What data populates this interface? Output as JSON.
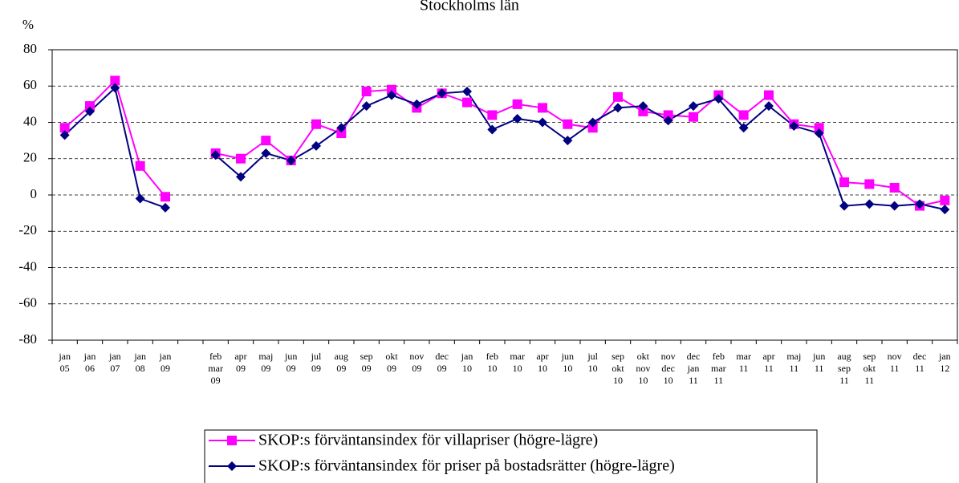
{
  "chart_data": {
    "type": "line",
    "title": "Stockholms län",
    "ylabel": "%",
    "categories": [
      "jan 05",
      "jan 06",
      "jan 07",
      "jan 08",
      "jan 09",
      null,
      "feb mar 09",
      "apr 09",
      "maj 09",
      "jun 09",
      "jul 09",
      "aug 09",
      "sep 09",
      "okt 09",
      "nov 09",
      "dec 09",
      "jan 10",
      "feb 10",
      "mar 10",
      "apr 10",
      "jun 10",
      "jul 10",
      "sep okt 10",
      "okt nov 10",
      "nov dec 10",
      "dec jan 11",
      "feb mar 11",
      "mar 11",
      "apr 11",
      "maj 11",
      "jun 11",
      "aug sep 11",
      "sep okt 11",
      "nov 11",
      "dec 11",
      "jan 12"
    ],
    "series": [
      {
        "name": "SKOP:s förväntansindex för villapriser (högre-lägre)",
        "color": "#ff00ff",
        "marker": "square",
        "values": [
          37,
          49,
          63,
          16,
          -1,
          null,
          23,
          20,
          30,
          19,
          39,
          34,
          57,
          58,
          48,
          56,
          51,
          44,
          50,
          48,
          39,
          37,
          54,
          46,
          44,
          43,
          55,
          44,
          55,
          39,
          37,
          7,
          6,
          4,
          -6,
          -3
        ]
      },
      {
        "name": "SKOP:s förväntansindex för priser på bostadsrätter (högre-lägre)",
        "color": "#000080",
        "marker": "diamond",
        "values": [
          33,
          46,
          59,
          -2,
          -7,
          null,
          22,
          10,
          23,
          19,
          27,
          37,
          49,
          55,
          50,
          56,
          57,
          36,
          42,
          40,
          30,
          40,
          48,
          49,
          41,
          49,
          53,
          37,
          49,
          38,
          34,
          -6,
          -5,
          -6,
          -5,
          -8
        ]
      }
    ],
    "ylim": [
      -80,
      80
    ],
    "yticks": [
      -80,
      -60,
      -40,
      -20,
      0,
      20,
      40,
      60,
      80
    ],
    "grid": true
  }
}
